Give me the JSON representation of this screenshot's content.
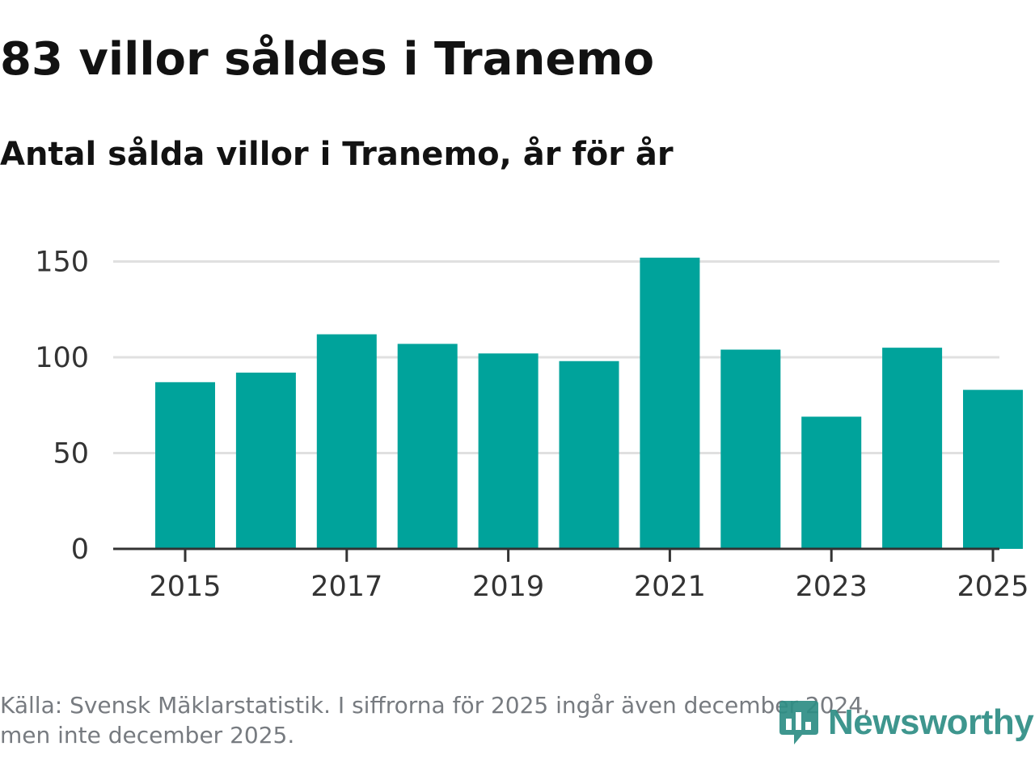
{
  "header": {
    "title": "83 villor såldes i Tranemo",
    "subtitle": "Antal sålda villor i Tranemo, år för år"
  },
  "chart_data": {
    "type": "bar",
    "categories": [
      "2015",
      "2016",
      "2017",
      "2018",
      "2019",
      "2020",
      "2021",
      "2022",
      "2023",
      "2024",
      "2025"
    ],
    "values": [
      87,
      92,
      112,
      107,
      102,
      98,
      152,
      104,
      69,
      105,
      83
    ],
    "x_tick_labels": [
      "2015",
      "2017",
      "2019",
      "2021",
      "2023",
      "2025"
    ],
    "y_ticks": [
      0,
      50,
      100,
      150
    ],
    "ylim": [
      0,
      160
    ],
    "grid": true,
    "bar_color": "#00a39b",
    "grid_color": "#e0e0e0",
    "axis_color": "#333333"
  },
  "footer": {
    "source_line1": "Källa: Svensk Mäklarstatistik. I siffrorna för 2025 ingår även december 2024,",
    "source_line2": "men inte december 2025."
  },
  "logo": {
    "text": "Newsworthy",
    "icon": "newsworthy-logo-icon",
    "color": "#2e8e85"
  }
}
